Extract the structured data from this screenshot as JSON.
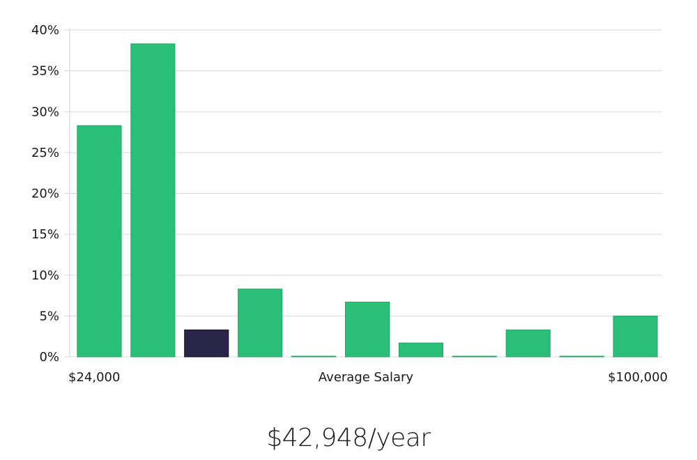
{
  "chart_data": {
    "type": "bar",
    "y_ticks": [
      "0%",
      "5%",
      "10%",
      "15%",
      "20%",
      "25%",
      "30%",
      "35%",
      "40%"
    ],
    "ylim": [
      0,
      40
    ],
    "grid": true,
    "values": [
      28.3,
      38.3,
      3.3,
      8.3,
      0,
      6.7,
      1.7,
      0,
      3.3,
      0,
      5.0
    ],
    "highlight_index": 2,
    "x_label_left": "$24,000",
    "x_label_center": "Average Salary",
    "x_label_right": "$100,000"
  },
  "colors": {
    "bar": "#2abf78",
    "bar_stroke": "#1aa862",
    "highlight": "#29264a",
    "grid": "#d9d9d9",
    "axis": "#cfcfcf"
  },
  "average_salary": "$42,948/year"
}
